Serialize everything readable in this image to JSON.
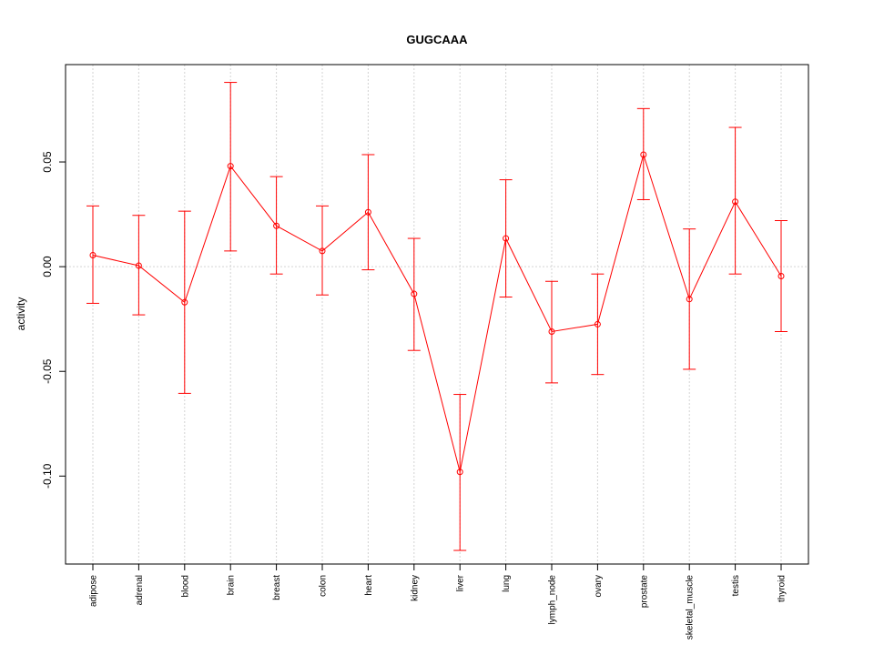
{
  "chart_data": {
    "type": "line",
    "title": "GUGCAAA",
    "xlabel": "",
    "ylabel": "activity",
    "ylim": [
      -0.142,
      0.0965
    ],
    "yticks": [
      -0.1,
      -0.05,
      0.0,
      0.05
    ],
    "ytick_labels": [
      "-0.10",
      "-0.05",
      "0.00",
      "0.05"
    ],
    "grid": true,
    "series_color": "#ff0000",
    "grid_color": "#d3d3d3",
    "categories": [
      "adipose",
      "adrenal",
      "blood",
      "brain",
      "breast",
      "colon",
      "heart",
      "kidney",
      "liver",
      "lung",
      "lymph_node",
      "ovary",
      "prostate",
      "skeletal_muscle",
      "testis",
      "thyroid"
    ],
    "values": [
      0.0055,
      0.0005,
      -0.017,
      0.048,
      0.0195,
      0.0075,
      0.026,
      -0.013,
      -0.098,
      0.0135,
      -0.031,
      -0.0275,
      0.0535,
      -0.0155,
      0.031,
      -0.0045
    ],
    "upper": [
      0.029,
      0.0245,
      0.0265,
      0.088,
      0.043,
      0.029,
      0.0535,
      0.0135,
      -0.061,
      0.0415,
      -0.007,
      -0.0035,
      0.0755,
      0.018,
      0.0665,
      0.022
    ],
    "lower": [
      -0.0175,
      -0.023,
      -0.0605,
      0.0075,
      -0.0035,
      -0.0135,
      -0.0015,
      -0.04,
      -0.1355,
      -0.0145,
      -0.0555,
      -0.0515,
      0.032,
      -0.049,
      -0.0035,
      -0.031
    ]
  }
}
